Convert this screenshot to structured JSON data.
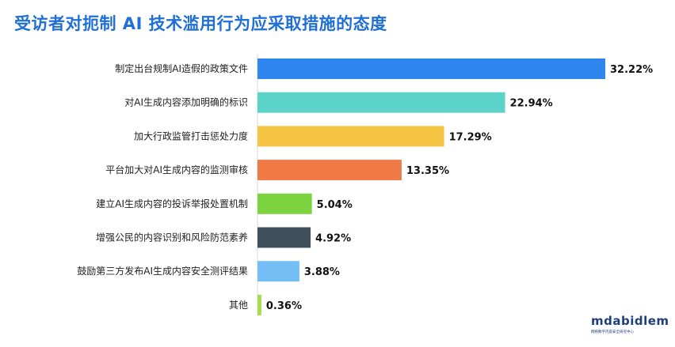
{
  "chart_data": {
    "type": "bar",
    "orientation": "horizontal",
    "title": "受访者对扼制 AI 技术滥用行为应采取措施的态度",
    "categories": [
      "制定出台规制AI造假的政策文件",
      "对AI生成内容添加明确的标识",
      "加大行政监管打击惩处力度",
      "平台加大对AI生成内容的监测审核",
      "建立AI生成内容的投诉举报处置机制",
      "增强公民的内容识别和风险防范素养",
      "鼓励第三方发布AI生成内容安全测评结果",
      "其他"
    ],
    "values": [
      32.22,
      22.94,
      17.29,
      13.35,
      5.04,
      4.92,
      3.88,
      0.36
    ],
    "value_labels": [
      "32.22%",
      "22.94%",
      "17.29%",
      "13.35%",
      "5.04%",
      "4.92%",
      "3.88%",
      "0.36%"
    ],
    "colors": [
      "#2f86ee",
      "#5cd3c8",
      "#f7c544",
      "#f07a45",
      "#7bd33f",
      "#3f4f5c",
      "#73bff5",
      "#a7dc4c"
    ],
    "xlim": [
      0,
      32.22
    ],
    "grid": false,
    "legend": "none"
  },
  "logo": {
    "text": "mdabidlem",
    "subtext": "网络数字内容安全研究中心"
  }
}
